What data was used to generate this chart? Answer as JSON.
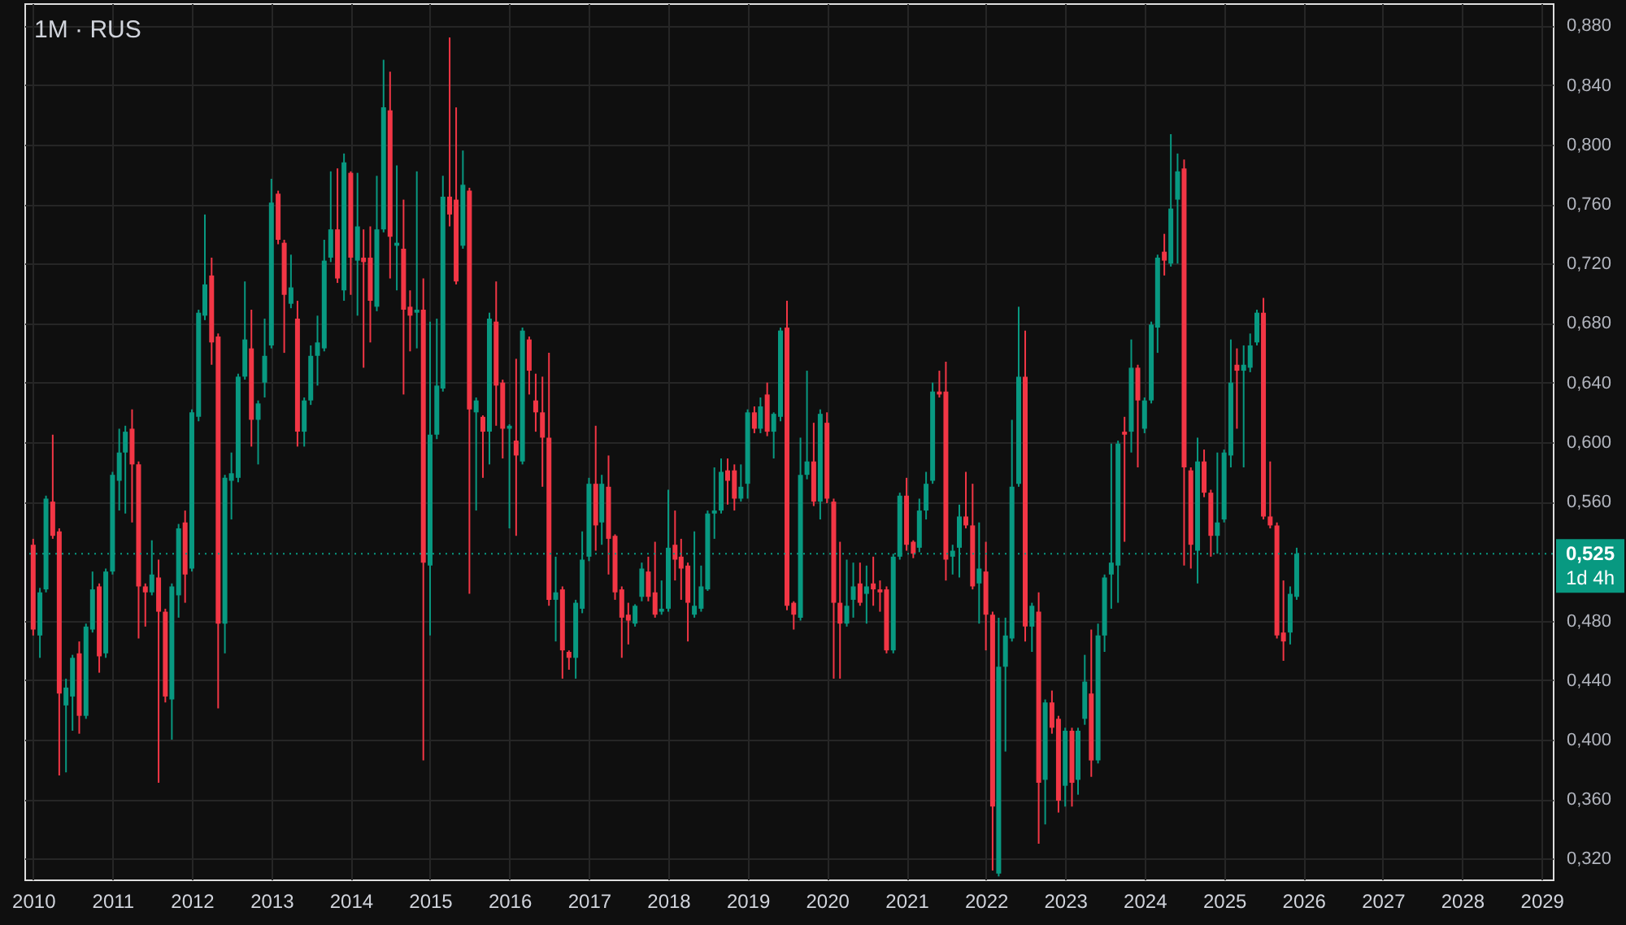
{
  "chart_data": {
    "type": "candlestick",
    "title": "1M · RUS",
    "x": [
      "2010-01",
      "2010-02",
      "2010-03",
      "2010-04",
      "2010-05",
      "2010-06",
      "2010-07",
      "2010-08",
      "2010-09",
      "2010-10",
      "2010-11",
      "2010-12",
      "2011-01",
      "2011-02",
      "2011-03",
      "2011-04",
      "2011-05",
      "2011-06",
      "2011-07",
      "2011-08",
      "2011-09",
      "2011-10",
      "2011-11",
      "2011-12",
      "2012-01",
      "2012-02",
      "2012-03",
      "2012-04",
      "2012-05",
      "2012-06",
      "2012-07",
      "2012-08",
      "2012-09",
      "2012-10",
      "2012-11",
      "2012-12",
      "2013-01",
      "2013-02",
      "2013-03",
      "2013-04",
      "2013-05",
      "2013-06",
      "2013-07",
      "2013-08",
      "2013-09",
      "2013-10",
      "2013-11",
      "2013-12",
      "2014-01",
      "2014-02",
      "2014-03",
      "2014-04",
      "2014-05",
      "2014-06",
      "2014-07",
      "2014-08",
      "2014-09",
      "2014-10",
      "2014-11",
      "2014-12",
      "2015-01",
      "2015-02",
      "2015-03",
      "2015-04",
      "2015-05",
      "2015-06",
      "2015-07",
      "2015-08",
      "2015-09",
      "2015-10",
      "2015-11",
      "2015-12",
      "2016-01",
      "2016-02",
      "2016-03",
      "2016-04",
      "2016-05",
      "2016-06",
      "2016-07",
      "2016-08",
      "2016-09",
      "2016-10",
      "2016-11",
      "2016-12",
      "2017-01",
      "2017-02",
      "2017-03",
      "2017-04",
      "2017-05",
      "2017-06",
      "2017-07",
      "2017-08",
      "2017-09",
      "2017-10",
      "2017-11",
      "2017-12",
      "2018-01",
      "2018-02",
      "2018-03",
      "2018-04",
      "2018-05",
      "2018-06",
      "2018-07",
      "2018-08",
      "2018-09",
      "2018-10",
      "2018-11",
      "2018-12",
      "2019-01",
      "2019-02",
      "2019-03",
      "2019-04",
      "2019-05",
      "2019-06",
      "2019-07",
      "2019-08",
      "2019-09",
      "2019-10",
      "2019-11",
      "2019-12",
      "2020-01",
      "2020-02",
      "2020-03",
      "2020-04",
      "2020-05",
      "2020-06",
      "2020-07",
      "2020-08",
      "2020-09",
      "2020-10",
      "2020-11",
      "2020-12",
      "2021-01",
      "2021-02",
      "2021-03",
      "2021-04",
      "2021-05",
      "2021-06",
      "2021-07",
      "2021-08",
      "2021-09",
      "2021-10",
      "2021-11",
      "2021-12",
      "2022-01",
      "2022-02",
      "2022-03",
      "2022-04",
      "2022-05",
      "2022-06",
      "2022-07",
      "2022-08",
      "2022-09",
      "2022-10",
      "2022-11",
      "2022-12",
      "2023-01",
      "2023-02",
      "2023-03",
      "2023-04",
      "2023-05",
      "2023-06",
      "2023-07",
      "2023-08",
      "2023-09",
      "2023-10",
      "2023-11",
      "2023-12",
      "2024-01",
      "2024-02",
      "2024-03",
      "2024-04",
      "2024-05",
      "2024-06",
      "2024-07",
      "2024-08",
      "2024-09",
      "2024-10",
      "2024-11",
      "2024-12",
      "2025-01",
      "2025-02",
      "2025-03",
      "2025-04",
      "2025-05",
      "2025-06",
      "2025-07",
      "2025-08",
      "2025-09",
      "2025-10",
      "2025-11",
      "2025-12"
    ],
    "ohlc": [
      [
        0.531,
        0.535,
        0.47,
        0.474
      ],
      [
        0.47,
        0.502,
        0.455,
        0.499
      ],
      [
        0.501,
        0.564,
        0.499,
        0.562
      ],
      [
        0.56,
        0.605,
        0.535,
        0.537
      ],
      [
        0.54,
        0.542,
        0.376,
        0.431
      ],
      [
        0.423,
        0.441,
        0.378,
        0.435
      ],
      [
        0.429,
        0.457,
        0.406,
        0.455
      ],
      [
        0.458,
        0.466,
        0.404,
        0.416
      ],
      [
        0.416,
        0.478,
        0.414,
        0.476
      ],
      [
        0.474,
        0.513,
        0.472,
        0.501
      ],
      [
        0.503,
        0.505,
        0.445,
        0.456
      ],
      [
        0.458,
        0.515,
        0.455,
        0.513
      ],
      [
        0.513,
        0.58,
        0.511,
        0.578
      ],
      [
        0.574,
        0.609,
        0.554,
        0.593
      ],
      [
        0.593,
        0.611,
        0.552,
        0.607
      ],
      [
        0.609,
        0.622,
        0.546,
        0.585
      ],
      [
        0.585,
        0.587,
        0.468,
        0.503
      ],
      [
        0.503,
        0.505,
        0.476,
        0.499
      ],
      [
        0.499,
        0.534,
        0.497,
        0.511
      ],
      [
        0.509,
        0.521,
        0.371,
        0.486
      ],
      [
        0.486,
        0.488,
        0.425,
        0.429
      ],
      [
        0.427,
        0.505,
        0.4,
        0.503
      ],
      [
        0.497,
        0.545,
        0.482,
        0.542
      ],
      [
        0.546,
        0.554,
        0.492,
        0.511
      ],
      [
        0.515,
        0.622,
        0.513,
        0.62
      ],
      [
        0.617,
        0.689,
        0.614,
        0.687
      ],
      [
        0.685,
        0.753,
        0.682,
        0.706
      ],
      [
        0.712,
        0.724,
        0.652,
        0.667
      ],
      [
        0.671,
        0.673,
        0.421,
        0.478
      ],
      [
        0.478,
        0.578,
        0.458,
        0.576
      ],
      [
        0.574,
        0.593,
        0.548,
        0.579
      ],
      [
        0.576,
        0.646,
        0.573,
        0.644
      ],
      [
        0.644,
        0.708,
        0.642,
        0.669
      ],
      [
        0.663,
        0.689,
        0.597,
        0.615
      ],
      [
        0.615,
        0.628,
        0.585,
        0.626
      ],
      [
        0.64,
        0.683,
        0.63,
        0.658
      ],
      [
        0.665,
        0.777,
        0.663,
        0.761
      ],
      [
        0.767,
        0.769,
        0.733,
        0.736
      ],
      [
        0.734,
        0.736,
        0.66,
        0.699
      ],
      [
        0.693,
        0.726,
        0.69,
        0.704
      ],
      [
        0.683,
        0.695,
        0.597,
        0.607
      ],
      [
        0.607,
        0.63,
        0.597,
        0.628
      ],
      [
        0.628,
        0.665,
        0.625,
        0.658
      ],
      [
        0.658,
        0.685,
        0.638,
        0.667
      ],
      [
        0.663,
        0.736,
        0.661,
        0.722
      ],
      [
        0.724,
        0.782,
        0.721,
        0.743
      ],
      [
        0.743,
        0.784,
        0.707,
        0.71
      ],
      [
        0.702,
        0.794,
        0.695,
        0.788
      ],
      [
        0.781,
        0.782,
        0.699,
        0.724
      ],
      [
        0.722,
        0.781,
        0.685,
        0.745
      ],
      [
        0.724,
        0.743,
        0.65,
        0.721
      ],
      [
        0.724,
        0.745,
        0.667,
        0.695
      ],
      [
        0.691,
        0.779,
        0.688,
        0.743
      ],
      [
        0.743,
        0.857,
        0.741,
        0.825
      ],
      [
        0.823,
        0.849,
        0.71,
        0.738
      ],
      [
        0.732,
        0.786,
        0.702,
        0.734
      ],
      [
        0.73,
        0.763,
        0.632,
        0.689
      ],
      [
        0.691,
        0.702,
        0.661,
        0.685
      ],
      [
        0.687,
        0.782,
        0.663,
        0.689
      ],
      [
        0.689,
        0.71,
        0.386,
        0.519
      ],
      [
        0.517,
        0.681,
        0.47,
        0.605
      ],
      [
        0.605,
        0.683,
        0.602,
        0.638
      ],
      [
        0.636,
        0.779,
        0.634,
        0.765
      ],
      [
        0.765,
        0.872,
        0.745,
        0.753
      ],
      [
        0.763,
        0.825,
        0.706,
        0.708
      ],
      [
        0.732,
        0.796,
        0.73,
        0.773
      ],
      [
        0.769,
        0.771,
        0.498,
        0.622
      ],
      [
        0.62,
        0.63,
        0.554,
        0.628
      ],
      [
        0.617,
        0.618,
        0.576,
        0.607
      ],
      [
        0.607,
        0.687,
        0.585,
        0.683
      ],
      [
        0.681,
        0.708,
        0.611,
        0.638
      ],
      [
        0.64,
        0.642,
        0.589,
        0.609
      ],
      [
        0.609,
        0.612,
        0.542,
        0.611
      ],
      [
        0.601,
        0.656,
        0.537,
        0.591
      ],
      [
        0.587,
        0.677,
        0.585,
        0.675
      ],
      [
        0.669,
        0.671,
        0.632,
        0.648
      ],
      [
        0.628,
        0.646,
        0.607,
        0.62
      ],
      [
        0.62,
        0.644,
        0.57,
        0.603
      ],
      [
        0.603,
        0.66,
        0.49,
        0.494
      ],
      [
        0.494,
        0.523,
        0.466,
        0.499
      ],
      [
        0.501,
        0.503,
        0.441,
        0.46
      ],
      [
        0.459,
        0.46,
        0.447,
        0.455
      ],
      [
        0.455,
        0.494,
        0.441,
        0.492
      ],
      [
        0.488,
        0.54,
        0.485,
        0.521
      ],
      [
        0.523,
        0.576,
        0.52,
        0.572
      ],
      [
        0.572,
        0.611,
        0.527,
        0.544
      ],
      [
        0.546,
        0.578,
        0.531,
        0.572
      ],
      [
        0.57,
        0.591,
        0.511,
        0.535
      ],
      [
        0.537,
        0.538,
        0.494,
        0.499
      ],
      [
        0.501,
        0.503,
        0.455,
        0.482
      ],
      [
        0.484,
        0.492,
        0.464,
        0.48
      ],
      [
        0.478,
        0.491,
        0.476,
        0.49
      ],
      [
        0.496,
        0.519,
        0.493,
        0.515
      ],
      [
        0.513,
        0.523,
        0.493,
        0.496
      ],
      [
        0.499,
        0.533,
        0.482,
        0.484
      ],
      [
        0.486,
        0.507,
        0.484,
        0.488
      ],
      [
        0.488,
        0.568,
        0.486,
        0.529
      ],
      [
        0.531,
        0.554,
        0.507,
        0.521
      ],
      [
        0.523,
        0.535,
        0.494,
        0.515
      ],
      [
        0.517,
        0.519,
        0.466,
        0.492
      ],
      [
        0.484,
        0.54,
        0.482,
        0.49
      ],
      [
        0.488,
        0.517,
        0.486,
        0.503
      ],
      [
        0.501,
        0.554,
        0.5,
        0.552
      ],
      [
        0.552,
        0.583,
        0.535,
        0.554
      ],
      [
        0.554,
        0.589,
        0.552,
        0.58
      ],
      [
        0.581,
        0.589,
        0.558,
        0.574
      ],
      [
        0.581,
        0.585,
        0.554,
        0.562
      ],
      [
        0.562,
        0.585,
        0.56,
        0.57
      ],
      [
        0.572,
        0.622,
        0.562,
        0.62
      ],
      [
        0.62,
        0.624,
        0.606,
        0.609
      ],
      [
        0.609,
        0.63,
        0.606,
        0.624
      ],
      [
        0.632,
        0.64,
        0.604,
        0.607
      ],
      [
        0.607,
        0.62,
        0.589,
        0.619
      ],
      [
        0.617,
        0.677,
        0.614,
        0.675
      ],
      [
        0.677,
        0.695,
        0.487,
        0.49
      ],
      [
        0.492,
        0.493,
        0.474,
        0.484
      ],
      [
        0.482,
        0.603,
        0.48,
        0.578
      ],
      [
        0.578,
        0.648,
        0.575,
        0.587
      ],
      [
        0.587,
        0.613,
        0.557,
        0.56
      ],
      [
        0.56,
        0.622,
        0.548,
        0.619
      ],
      [
        0.613,
        0.62,
        0.559,
        0.562
      ],
      [
        0.56,
        0.562,
        0.441,
        0.492
      ],
      [
        0.492,
        0.533,
        0.441,
        0.478
      ],
      [
        0.478,
        0.521,
        0.476,
        0.49
      ],
      [
        0.494,
        0.519,
        0.482,
        0.503
      ],
      [
        0.505,
        0.519,
        0.49,
        0.492
      ],
      [
        0.498,
        0.517,
        0.478,
        0.503
      ],
      [
        0.505,
        0.523,
        0.49,
        0.501
      ],
      [
        0.501,
        0.507,
        0.486,
        0.499
      ],
      [
        0.501,
        0.503,
        0.458,
        0.46
      ],
      [
        0.46,
        0.525,
        0.458,
        0.523
      ],
      [
        0.523,
        0.566,
        0.521,
        0.564
      ],
      [
        0.564,
        0.576,
        0.527,
        0.531
      ],
      [
        0.533,
        0.534,
        0.522,
        0.525
      ],
      [
        0.529,
        0.562,
        0.526,
        0.554
      ],
      [
        0.554,
        0.58,
        0.548,
        0.572
      ],
      [
        0.574,
        0.64,
        0.572,
        0.634
      ],
      [
        0.634,
        0.648,
        0.63,
        0.632
      ],
      [
        0.634,
        0.654,
        0.507,
        0.521
      ],
      [
        0.523,
        0.531,
        0.511,
        0.527
      ],
      [
        0.529,
        0.558,
        0.509,
        0.55
      ],
      [
        0.55,
        0.58,
        0.542,
        0.544
      ],
      [
        0.544,
        0.572,
        0.501,
        0.503
      ],
      [
        0.505,
        0.546,
        0.478,
        0.515
      ],
      [
        0.513,
        0.533,
        0.46,
        0.484
      ],
      [
        0.484,
        0.486,
        0.312,
        0.355
      ],
      [
        0.31,
        0.482,
        0.308,
        0.449
      ],
      [
        0.449,
        0.482,
        0.392,
        0.47
      ],
      [
        0.468,
        0.615,
        0.466,
        0.57
      ],
      [
        0.572,
        0.691,
        0.57,
        0.644
      ],
      [
        0.644,
        0.675,
        0.466,
        0.476
      ],
      [
        0.476,
        0.492,
        0.459,
        0.49
      ],
      [
        0.486,
        0.499,
        0.33,
        0.371
      ],
      [
        0.373,
        0.427,
        0.343,
        0.425
      ],
      [
        0.425,
        0.433,
        0.404,
        0.408
      ],
      [
        0.414,
        0.416,
        0.351,
        0.359
      ],
      [
        0.369,
        0.408,
        0.355,
        0.406
      ],
      [
        0.406,
        0.408,
        0.355,
        0.371
      ],
      [
        0.373,
        0.408,
        0.363,
        0.406
      ],
      [
        0.414,
        0.457,
        0.41,
        0.439
      ],
      [
        0.431,
        0.474,
        0.375,
        0.386
      ],
      [
        0.386,
        0.478,
        0.384,
        0.47
      ],
      [
        0.47,
        0.511,
        0.459,
        0.509
      ],
      [
        0.511,
        0.599,
        0.488,
        0.519
      ],
      [
        0.517,
        0.601,
        0.492,
        0.599
      ],
      [
        0.607,
        0.617,
        0.533,
        0.605
      ],
      [
        0.607,
        0.669,
        0.593,
        0.65
      ],
      [
        0.65,
        0.652,
        0.583,
        0.628
      ],
      [
        0.609,
        0.63,
        0.606,
        0.628
      ],
      [
        0.628,
        0.681,
        0.626,
        0.679
      ],
      [
        0.677,
        0.726,
        0.66,
        0.724
      ],
      [
        0.728,
        0.74,
        0.712,
        0.722
      ],
      [
        0.72,
        0.807,
        0.718,
        0.757
      ],
      [
        0.763,
        0.794,
        0.72,
        0.782
      ],
      [
        0.784,
        0.79,
        0.517,
        0.583
      ],
      [
        0.581,
        0.583,
        0.515,
        0.531
      ],
      [
        0.527,
        0.603,
        0.505,
        0.587
      ],
      [
        0.587,
        0.595,
        0.563,
        0.566
      ],
      [
        0.566,
        0.568,
        0.523,
        0.537
      ],
      [
        0.537,
        0.593,
        0.525,
        0.546
      ],
      [
        0.548,
        0.595,
        0.546,
        0.593
      ],
      [
        0.591,
        0.669,
        0.583,
        0.64
      ],
      [
        0.652,
        0.663,
        0.609,
        0.648
      ],
      [
        0.648,
        0.665,
        0.583,
        0.652
      ],
      [
        0.65,
        0.673,
        0.647,
        0.665
      ],
      [
        0.667,
        0.689,
        0.665,
        0.687
      ],
      [
        0.687,
        0.697,
        0.548,
        0.55
      ],
      [
        0.55,
        0.587,
        0.542,
        0.544
      ],
      [
        0.544,
        0.546,
        0.468,
        0.47
      ],
      [
        0.472,
        0.507,
        0.453,
        0.466
      ],
      [
        0.472,
        0.503,
        0.464,
        0.498
      ],
      [
        0.496,
        0.529,
        0.494,
        0.525
      ]
    ],
    "colors": [
      "#f23645",
      "#089981",
      "#089981",
      "#f23645",
      "#f23645",
      "#089981",
      "#089981",
      "#f23645",
      "#089981",
      "#089981",
      "#f23645",
      "#089981",
      "#089981",
      "#089981",
      "#089981",
      "#f23645",
      "#f23645",
      "#f23645",
      "#089981",
      "#f23645",
      "#f23645",
      "#089981",
      "#089981",
      "#f23645",
      "#089981",
      "#089981",
      "#089981",
      "#f23645",
      "#f23645",
      "#089981",
      "#089981",
      "#089981",
      "#089981",
      "#f23645",
      "#089981",
      "#089981",
      "#089981",
      "#f23645",
      "#f23645",
      "#089981",
      "#f23645",
      "#089981",
      "#089981",
      "#089981",
      "#089981",
      "#089981",
      "#f23645",
      "#089981",
      "#f23645",
      "#089981",
      "#f23645",
      "#f23645",
      "#089981",
      "#089981",
      "#f23645",
      "#089981",
      "#f23645",
      "#f23645",
      "#089981",
      "#f23645",
      "#089981",
      "#089981",
      "#089981",
      "#f23645",
      "#f23645",
      "#089981",
      "#f23645",
      "#089981",
      "#f23645",
      "#089981",
      "#f23645",
      "#f23645",
      "#089981",
      "#f23645",
      "#089981",
      "#f23645",
      "#f23645",
      "#f23645",
      "#f23645",
      "#089981",
      "#f23645",
      "#f23645",
      "#089981",
      "#089981",
      "#089981",
      "#f23645",
      "#089981",
      "#f23645",
      "#f23645",
      "#f23645",
      "#f23645",
      "#089981",
      "#089981",
      "#f23645",
      "#f23645",
      "#089981",
      "#089981",
      "#f23645",
      "#f23645",
      "#f23645",
      "#089981",
      "#089981",
      "#089981",
      "#089981",
      "#089981",
      "#f23645",
      "#f23645",
      "#089981",
      "#089981",
      "#f23645",
      "#089981",
      "#f23645",
      "#089981",
      "#089981",
      "#f23645",
      "#f23645",
      "#089981",
      "#089981",
      "#f23645",
      "#089981",
      "#f23645",
      "#f23645",
      "#f23645",
      "#089981",
      "#089981",
      "#f23645",
      "#089981",
      "#f23645",
      "#f23645",
      "#f23645",
      "#089981",
      "#089981",
      "#f23645",
      "#f23645",
      "#089981",
      "#089981",
      "#089981",
      "#f23645",
      "#f23645",
      "#089981",
      "#089981",
      "#f23645",
      "#f23645",
      "#089981",
      "#f23645",
      "#f23645",
      "#089981",
      "#089981",
      "#089981",
      "#089981",
      "#f23645",
      "#089981",
      "#f23645",
      "#089981",
      "#f23645",
      "#f23645",
      "#089981",
      "#f23645",
      "#089981",
      "#089981",
      "#f23645",
      "#089981",
      "#089981",
      "#089981",
      "#089981",
      "#f23645",
      "#089981",
      "#f23645",
      "#089981",
      "#089981",
      "#089981",
      "#f23645",
      "#089981",
      "#089981",
      "#f23645",
      "#f23645",
      "#089981",
      "#f23645",
      "#f23645",
      "#089981",
      "#089981",
      "#089981",
      "#f23645",
      "#089981",
      "#089981",
      "#089981",
      "#f23645",
      "#f23645",
      "#f23645",
      "#f23645",
      "#089981",
      "#089981"
    ],
    "xlim": [
      "2009-12-29",
      "2029-01-15"
    ],
    "xticks": [
      "2010",
      "2011",
      "2012",
      "2013",
      "2014",
      "2015",
      "2016",
      "2017",
      "2018",
      "2019",
      "2020",
      "2021",
      "2022",
      "2023",
      "2024",
      "2025",
      "2026",
      "2027",
      "2028",
      "2029"
    ],
    "ylim": [
      0.306,
      0.895
    ],
    "yticks": [
      {
        "value": 0.32,
        "label": "0,320"
      },
      {
        "value": 0.36,
        "label": "0,360"
      },
      {
        "value": 0.4,
        "label": "0,400"
      },
      {
        "value": 0.44,
        "label": "0,440"
      },
      {
        "value": 0.48,
        "label": "0,480"
      },
      {
        "value": 0.56,
        "label": "0,560"
      },
      {
        "value": 0.6,
        "label": "0,600"
      },
      {
        "value": 0.64,
        "label": "0,640"
      },
      {
        "value": 0.68,
        "label": "0,680"
      },
      {
        "value": 0.72,
        "label": "0,720"
      },
      {
        "value": 0.76,
        "label": "0,760"
      },
      {
        "value": 0.8,
        "label": "0,800"
      },
      {
        "value": 0.84,
        "label": "0,840"
      },
      {
        "value": 0.88,
        "label": "0,880"
      }
    ],
    "grid": true,
    "ref_lines": [
      {
        "axis": "y",
        "value": 0.525,
        "label": "0,525",
        "color": "#089981",
        "line_style": "dotted"
      }
    ],
    "annotations": [
      "1d 4h"
    ]
  }
}
